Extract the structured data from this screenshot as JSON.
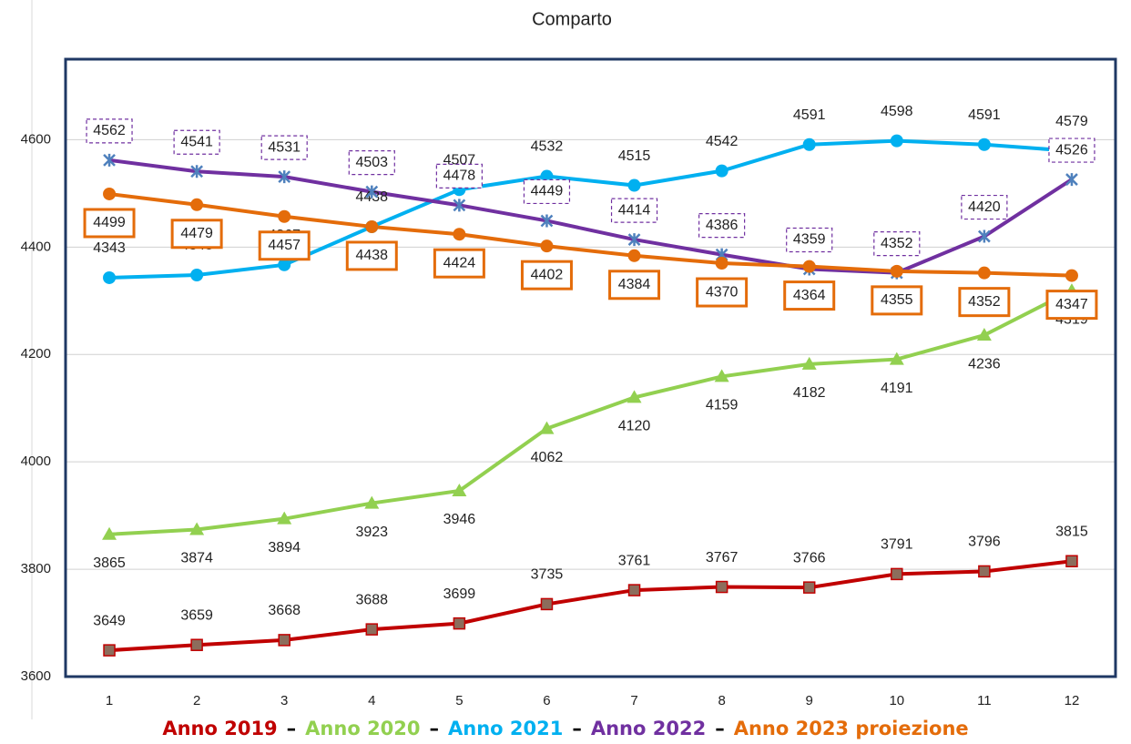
{
  "chart_data": {
    "type": "line",
    "title": "Comparto",
    "categories": [
      "1",
      "2",
      "3",
      "4",
      "5",
      "6",
      "7",
      "8",
      "9",
      "10",
      "11",
      "12"
    ],
    "ylim": [
      3600,
      4750
    ],
    "yticks": [
      3600,
      3800,
      4000,
      4200,
      4400,
      4600
    ],
    "grid": true,
    "legend_separator": "–",
    "series": [
      {
        "name": "Anno 2019",
        "color": "#c00000",
        "marker": "square",
        "label_position": "above",
        "label_box": "none",
        "values": [
          3649,
          3659,
          3668,
          3688,
          3699,
          3735,
          3761,
          3767,
          3766,
          3791,
          3796,
          3815
        ]
      },
      {
        "name": "Anno 2020",
        "color": "#92d050",
        "marker": "triangle",
        "label_position": "below",
        "label_box": "none",
        "values": [
          3865,
          3874,
          3894,
          3923,
          3946,
          4062,
          4120,
          4159,
          4182,
          4191,
          4236,
          4319
        ]
      },
      {
        "name": "Anno 2021",
        "color": "#00b0f0",
        "marker": "circle",
        "label_position": "above",
        "label_box": "none",
        "values": [
          4343,
          4348,
          4367,
          4438,
          4507,
          4532,
          4515,
          4542,
          4591,
          4598,
          4591,
          4579
        ]
      },
      {
        "name": "Anno 2022",
        "color": "#7030a0",
        "marker": "star",
        "label_position": "above",
        "label_box": "dashed",
        "values": [
          4562,
          4541,
          4531,
          4503,
          4478,
          4449,
          4414,
          4386,
          4359,
          4352,
          4420,
          4526
        ]
      },
      {
        "name": "Anno 2023 proiezione",
        "color": "#e46c0a",
        "marker": "circle",
        "label_position": "below",
        "label_box": "solid",
        "values": [
          4499,
          4479,
          4457,
          4438,
          4424,
          4402,
          4384,
          4370,
          4364,
          4355,
          4352,
          4347
        ]
      }
    ]
  }
}
